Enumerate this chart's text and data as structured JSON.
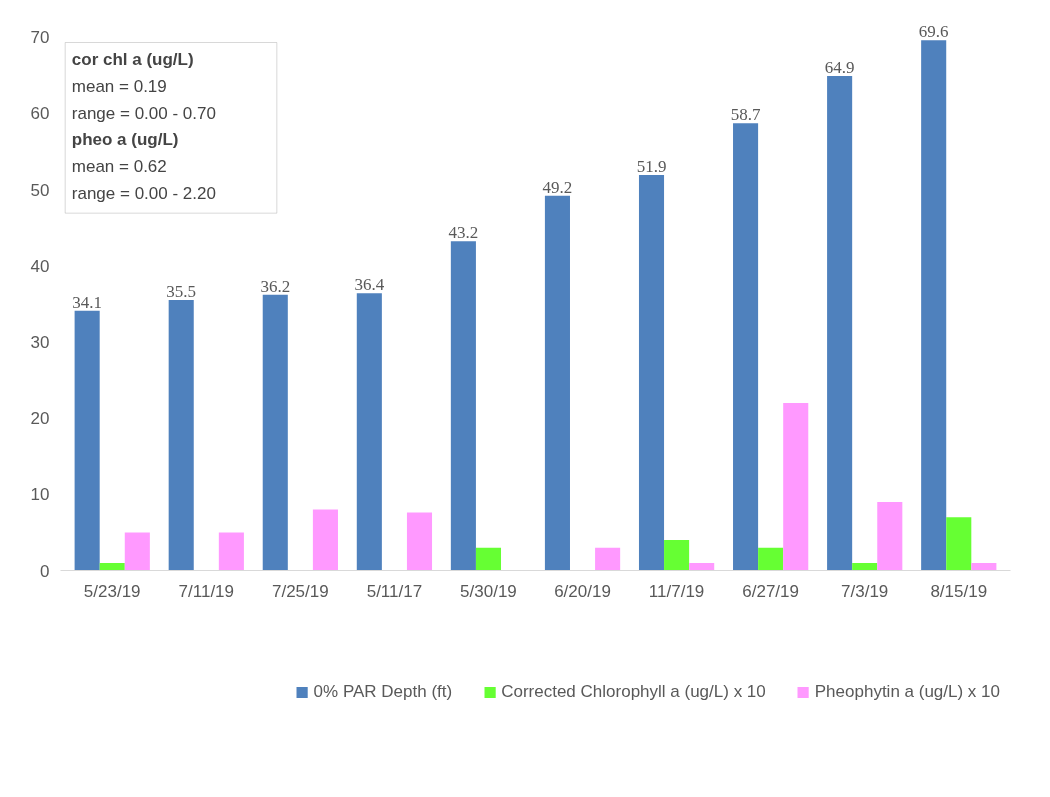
{
  "chart_data": {
    "type": "bar",
    "categories": [
      "5/23/19",
      "7/11/19",
      "7/25/19",
      "5/11/17",
      "5/30/19",
      "6/20/19",
      "11/7/19",
      "6/27/19",
      "7/3/19",
      "8/15/19"
    ],
    "series": [
      {
        "name": "0% PAR Depth (ft)",
        "color": "#4f81bd",
        "values": [
          34.1,
          35.5,
          36.2,
          36.4,
          43.2,
          49.2,
          51.9,
          58.7,
          64.9,
          69.6
        ],
        "value_labels": [
          "34.1",
          "35.5",
          "36.2",
          "36.4",
          "43.2",
          "49.2",
          "51.9",
          "58.7",
          "64.9",
          "69.6"
        ]
      },
      {
        "name": "Corrected Chlorophyll a (ug/L) x 10",
        "color": "#66ff33",
        "values": [
          1,
          0,
          0,
          0,
          3,
          0,
          4,
          3,
          1,
          7
        ]
      },
      {
        "name": "Pheophytin a (ug/L) x 10",
        "color": "#ff99ff",
        "values": [
          5,
          5,
          8,
          7.6,
          0,
          3,
          1,
          22,
          9,
          1
        ]
      }
    ],
    "ylim": [
      0,
      70
    ],
    "yticks": [
      0,
      10,
      20,
      30,
      40,
      50,
      60,
      70
    ],
    "grid": false,
    "legend": "bottom",
    "annotations": [
      "cor chl a (ug/L)",
      "mean = 0.19",
      "range = 0.00 - 0.70",
      "pheo a (ug/L)",
      "mean = 0.62",
      "range = 0.00 - 2.20"
    ]
  }
}
